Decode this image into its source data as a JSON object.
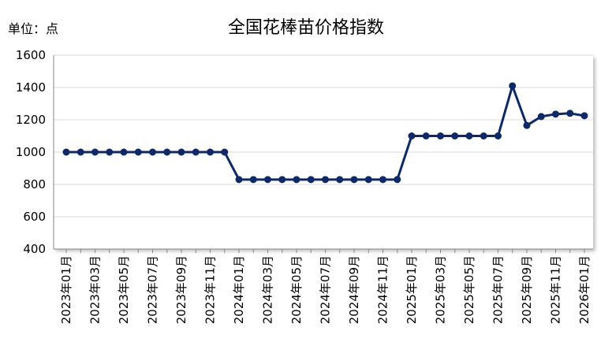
{
  "chart_data": {
    "type": "line",
    "title": "全国花棒苗价格指数",
    "unit": "单位：点",
    "categories": [
      "2023年01月",
      null,
      "2023年03月",
      null,
      "2023年05月",
      null,
      "2023年07月",
      null,
      "2023年09月",
      null,
      "2023年11月",
      null,
      "2024年01月",
      null,
      "2024年03月",
      null,
      "2024年05月",
      null,
      "2024年07月",
      null,
      "2024年09月",
      null,
      "2024年11月",
      null,
      "2025年01月",
      null,
      "2025年03月",
      null,
      "2025年05月",
      null,
      "2025年07月",
      null,
      "2025年09月",
      null,
      "2025年11月",
      null,
      "2026年01月"
    ],
    "values": [
      1000,
      1000,
      1000,
      1000,
      1000,
      1000,
      1000,
      1000,
      1000,
      1000,
      1000,
      1000,
      830,
      830,
      830,
      830,
      830,
      830,
      830,
      830,
      830,
      830,
      830,
      830,
      1100,
      1100,
      1100,
      1100,
      1100,
      1100,
      1100,
      1410,
      1165,
      1220,
      1235,
      1240,
      1225
    ],
    "color": "#0d2a66",
    "ylim": [
      400,
      1600
    ],
    "yticks": [
      400,
      600,
      800,
      1000,
      1200,
      1400,
      1600
    ],
    "grid": true
  }
}
